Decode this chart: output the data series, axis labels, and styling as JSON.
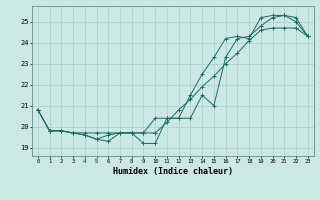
{
  "title": "",
  "xlabel": "Humidex (Indice chaleur)",
  "bg_color": "#cce8e4",
  "grid_color": "#aacfca",
  "line_color": "#1a6b5e",
  "x_ticks": [
    0,
    1,
    2,
    3,
    4,
    5,
    6,
    7,
    8,
    9,
    10,
    11,
    12,
    13,
    14,
    15,
    16,
    17,
    18,
    19,
    20,
    21,
    22,
    23
  ],
  "y_ticks": [
    19,
    20,
    21,
    22,
    23,
    24,
    25
  ],
  "ylim": [
    18.6,
    25.75
  ],
  "xlim": [
    -0.5,
    23.5
  ],
  "line1": [
    20.8,
    19.8,
    19.8,
    19.7,
    19.6,
    19.4,
    19.3,
    19.7,
    19.7,
    19.7,
    20.4,
    20.4,
    20.4,
    21.5,
    22.5,
    23.3,
    24.2,
    24.3,
    24.2,
    25.2,
    25.3,
    25.3,
    25.2,
    24.3
  ],
  "line2": [
    20.8,
    19.8,
    19.8,
    19.7,
    19.6,
    19.4,
    19.6,
    19.7,
    19.7,
    19.2,
    19.2,
    20.4,
    20.4,
    20.4,
    21.5,
    21.0,
    23.3,
    24.2,
    24.3,
    24.8,
    25.2,
    25.3,
    25.0,
    24.3
  ],
  "line3": [
    20.8,
    19.8,
    19.8,
    19.7,
    19.7,
    19.7,
    19.7,
    19.7,
    19.7,
    19.7,
    19.7,
    20.2,
    20.8,
    21.3,
    21.9,
    22.4,
    23.0,
    23.5,
    24.1,
    24.6,
    24.7,
    24.7,
    24.7,
    24.3
  ]
}
